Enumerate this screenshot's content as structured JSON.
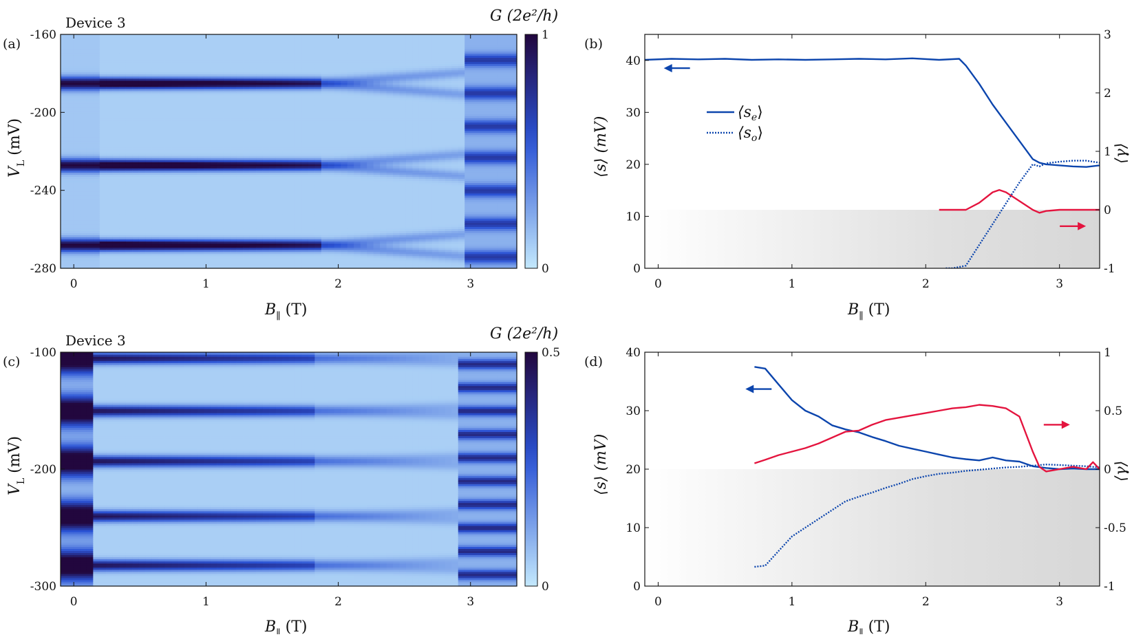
{
  "figure": {
    "colors": {
      "dark": "#22073e",
      "mid": "#2a52d4",
      "light": "#c3e8fc",
      "blue": "#0c45ad",
      "red": "#e4143e",
      "gray": "#d7d7d7",
      "frame": "#111111"
    }
  },
  "chart_data": [
    {
      "id": "a",
      "type": "heatmap",
      "panel_label": "(a)",
      "title": "Device 3",
      "xlabel": "B",
      "xlabel_sub": "∥",
      "xlabel_unit": " (T)",
      "ylabel": "V",
      "ylabel_sub": "L",
      "ylabel_unit": " (mV)",
      "xlim": [
        -0.1,
        3.35
      ],
      "ylim": [
        -280,
        -160
      ],
      "xticks": [
        0,
        1,
        2,
        3
      ],
      "xtick_labels": [
        "0",
        "1",
        "2",
        "3"
      ],
      "yticks": [
        -160,
        -200,
        -240,
        -280
      ],
      "ytick_labels": [
        "-160",
        "-200",
        "-240",
        "-280"
      ],
      "colorbar": {
        "label": "G (2e²/h)",
        "min": 0,
        "max": 1,
        "tick_labels": [
          "1",
          "0"
        ]
      },
      "resonances_low_field_mV": [
        -185,
        -227,
        -268
      ],
      "resonances_high_field_mV": [
        -173,
        -190,
        -207,
        -223,
        -240,
        -257,
        -274
      ]
    },
    {
      "id": "b",
      "type": "line",
      "panel_label": "(b)",
      "xlabel": "B",
      "xlabel_sub": "∥",
      "xlabel_unit": " (T)",
      "ylabel": "⟨s⟩ (mV)",
      "y2label": "⟨γ⟩",
      "xlim": [
        -0.1,
        3.3
      ],
      "ylim": [
        0,
        45
      ],
      "y2lim": [
        -1,
        3
      ],
      "xticks": [
        0,
        1,
        2,
        3
      ],
      "xtick_labels": [
        "0",
        "1",
        "2",
        "3"
      ],
      "yticks": [
        0,
        10,
        20,
        30,
        40
      ],
      "ytick_labels": [
        "0",
        "10",
        "20",
        "30",
        "40"
      ],
      "y2ticks": [
        -1,
        0,
        1,
        2,
        3
      ],
      "y2tick_labels": [
        "-1",
        "0",
        "1",
        "2",
        "3"
      ],
      "legend": [
        {
          "name": "⟨s",
          "sub": "e",
          "tail": "⟩",
          "style": "solid"
        },
        {
          "name": "⟨s",
          "sub": "o",
          "tail": "⟩",
          "style": "dotted"
        }
      ],
      "series": [
        {
          "name": "s_e",
          "axis": "left",
          "style": "solid",
          "color": "#0c45ad",
          "x": [
            -0.1,
            0.1,
            0.3,
            0.5,
            0.7,
            0.9,
            1.1,
            1.3,
            1.5,
            1.7,
            1.9,
            2.1,
            2.25,
            2.3,
            2.4,
            2.5,
            2.6,
            2.7,
            2.8,
            2.85,
            2.9,
            3.0,
            3.1,
            3.2,
            3.3
          ],
          "y": [
            40.1,
            40.3,
            40.2,
            40.3,
            40.1,
            40.2,
            40.1,
            40.2,
            40.3,
            40.2,
            40.4,
            40.1,
            40.3,
            39.0,
            35.5,
            31.5,
            28.0,
            24.5,
            21.0,
            20.3,
            20.0,
            19.8,
            19.6,
            19.5,
            19.8
          ]
        },
        {
          "name": "s_o",
          "axis": "left",
          "style": "dotted",
          "color": "#0c45ad",
          "x": [
            2.15,
            2.2,
            2.3,
            2.4,
            2.5,
            2.6,
            2.7,
            2.8,
            2.85,
            2.9,
            3.0,
            3.1,
            3.2,
            3.3
          ],
          "y": [
            0.0,
            0.0,
            0.5,
            4.5,
            8.5,
            12.5,
            16.5,
            20.0,
            19.6,
            20.2,
            20.5,
            20.7,
            20.7,
            20.3
          ]
        },
        {
          "name": "gamma",
          "axis": "right",
          "style": "solid",
          "color": "#e4143e",
          "x": [
            2.1,
            2.2,
            2.3,
            2.4,
            2.5,
            2.55,
            2.6,
            2.7,
            2.8,
            2.85,
            2.9,
            3.0,
            3.1,
            3.3
          ],
          "y": [
            0.0,
            0.0,
            0.0,
            0.12,
            0.3,
            0.34,
            0.3,
            0.15,
            0.0,
            -0.05,
            -0.02,
            0.0,
            0.0,
            0.0
          ]
        }
      ],
      "shade_below_y2": 0,
      "arrows": [
        {
          "dir": "left",
          "at_x": 0.14,
          "at_y": 38.5,
          "color": "#0c45ad"
        },
        {
          "dir": "right",
          "at_x": 3.1,
          "at_y": 8.1,
          "color": "#e4143e"
        }
      ]
    },
    {
      "id": "c",
      "type": "heatmap",
      "panel_label": "(c)",
      "title": "Device 3",
      "xlabel": "B",
      "xlabel_sub": "∥",
      "xlabel_unit": " (T)",
      "ylabel": "V",
      "ylabel_sub": "L",
      "ylabel_unit": " (mV)",
      "xlim": [
        -0.1,
        3.35
      ],
      "ylim": [
        -300,
        -100
      ],
      "xticks": [
        0,
        1,
        2,
        3
      ],
      "xtick_labels": [
        "0",
        "1",
        "2",
        "3"
      ],
      "yticks": [
        -100,
        -200,
        -300
      ],
      "ytick_labels": [
        "-100",
        "-200",
        "-300"
      ],
      "colorbar": {
        "label": "G (2e²/h)",
        "min": 0,
        "max": 0.5,
        "tick_labels": [
          "0.5",
          "0"
        ]
      },
      "resonances_low_field_mV": [
        -105,
        -150,
        -193,
        -240,
        -282
      ],
      "resonances_high_field_mV": [
        -110,
        -130,
        -150,
        -170,
        -190,
        -210,
        -230,
        -250,
        -270,
        -290
      ]
    },
    {
      "id": "d",
      "type": "line",
      "panel_label": "(d)",
      "xlabel": "B",
      "xlabel_sub": "∥",
      "xlabel_unit": " (T)",
      "ylabel": "⟨s⟩ (mV)",
      "y2label": "⟨γ⟩",
      "xlim": [
        -0.1,
        3.3
      ],
      "ylim": [
        0,
        40
      ],
      "y2lim": [
        -1,
        1
      ],
      "xticks": [
        0,
        1,
        2,
        3
      ],
      "xtick_labels": [
        "0",
        "1",
        "2",
        "3"
      ],
      "yticks": [
        0,
        10,
        20,
        30,
        40
      ],
      "ytick_labels": [
        "0",
        "10",
        "20",
        "30",
        "40"
      ],
      "y2ticks": [
        -1,
        -0.5,
        0,
        0.5,
        1
      ],
      "y2tick_labels": [
        "-1",
        "-0.5",
        "0",
        "0.5",
        "1"
      ],
      "series": [
        {
          "name": "s_e",
          "axis": "left",
          "style": "solid",
          "color": "#0c45ad",
          "x": [
            0.72,
            0.8,
            0.9,
            1.0,
            1.1,
            1.2,
            1.3,
            1.4,
            1.5,
            1.6,
            1.7,
            1.8,
            1.9,
            2.0,
            2.1,
            2.2,
            2.3,
            2.4,
            2.5,
            2.6,
            2.7,
            2.8,
            2.9,
            3.0,
            3.1,
            3.2,
            3.3
          ],
          "y": [
            37.5,
            37.2,
            34.5,
            31.8,
            30.0,
            29.0,
            27.5,
            26.8,
            26.3,
            25.5,
            24.8,
            24.0,
            23.5,
            23.0,
            22.5,
            22.0,
            21.7,
            21.5,
            22.0,
            21.5,
            21.3,
            20.5,
            20.2,
            20.0,
            20.1,
            20.0,
            20.0
          ]
        },
        {
          "name": "s_o",
          "axis": "left",
          "style": "dotted",
          "color": "#0c45ad",
          "x": [
            0.72,
            0.8,
            0.9,
            1.0,
            1.1,
            1.2,
            1.3,
            1.4,
            1.5,
            1.6,
            1.7,
            1.8,
            1.9,
            2.0,
            2.1,
            2.2,
            2.3,
            2.4,
            2.5,
            2.6,
            2.7,
            2.8,
            2.9,
            3.0,
            3.1,
            3.2,
            3.3
          ],
          "y": [
            3.3,
            3.5,
            6.0,
            8.5,
            10.0,
            11.5,
            13.0,
            14.5,
            15.3,
            16.0,
            16.8,
            17.5,
            18.3,
            18.8,
            19.2,
            19.4,
            19.7,
            19.9,
            20.1,
            20.3,
            20.4,
            20.6,
            20.8,
            20.7,
            20.6,
            20.5,
            20.3
          ]
        },
        {
          "name": "gamma",
          "axis": "right",
          "style": "solid",
          "color": "#e4143e",
          "x": [
            0.72,
            0.8,
            0.9,
            1.0,
            1.1,
            1.2,
            1.3,
            1.4,
            1.5,
            1.6,
            1.7,
            1.8,
            1.9,
            2.0,
            2.1,
            2.2,
            2.3,
            2.4,
            2.5,
            2.6,
            2.7,
            2.75,
            2.8,
            2.85,
            2.9,
            3.0,
            3.1,
            3.2,
            3.25,
            3.3
          ],
          "y": [
            0.05,
            0.08,
            0.12,
            0.15,
            0.18,
            0.22,
            0.27,
            0.32,
            0.33,
            0.38,
            0.42,
            0.44,
            0.46,
            0.48,
            0.5,
            0.52,
            0.53,
            0.55,
            0.54,
            0.52,
            0.45,
            0.3,
            0.15,
            0.02,
            -0.02,
            0.0,
            0.02,
            0.0,
            0.06,
            0.0
          ]
        }
      ],
      "shade_below_y2": 0,
      "arrows": [
        {
          "dir": "left",
          "at_x": 0.75,
          "at_y": 33.7,
          "color": "#0c45ad"
        },
        {
          "dir": "right",
          "at_x": 2.98,
          "at_y": 27.6,
          "color": "#e4143e"
        }
      ]
    }
  ]
}
